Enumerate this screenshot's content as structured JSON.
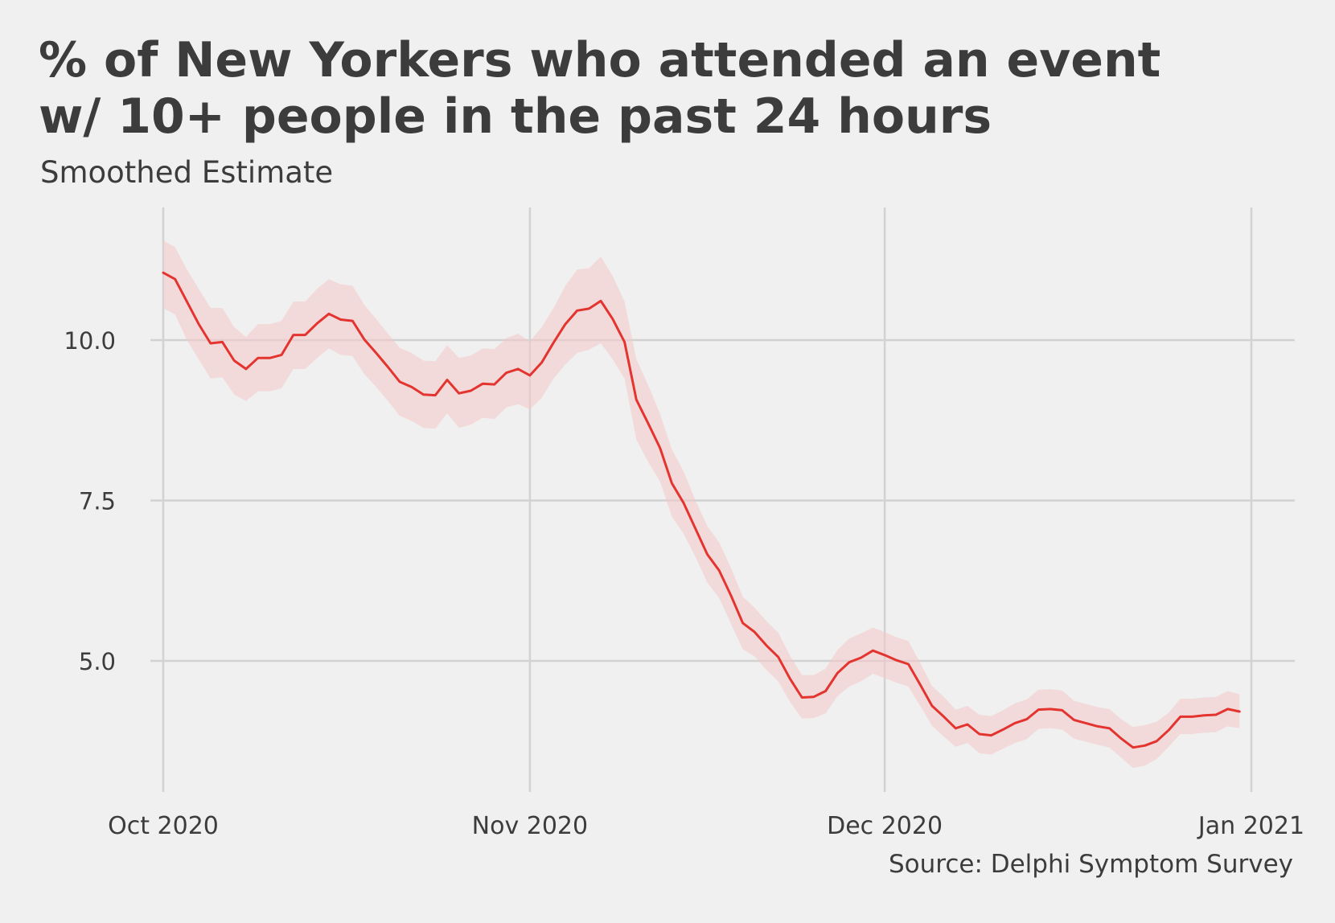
{
  "header": {
    "title_line1": "% of New Yorkers who attended an event",
    "title_line2": "w/ 10+ people in the past 24 hours",
    "subtitle": "Smoothed Estimate"
  },
  "footer": {
    "source": "Source: Delphi Symptom Survey"
  },
  "colors": {
    "line": "#e3342f",
    "ribbon": "#f5c9c9",
    "grid": "#d2d2d2",
    "background": "#f0f0f0",
    "text": "#3c3c3c"
  },
  "chart_data": {
    "type": "line",
    "title": "% of New Yorkers who attended an event w/ 10+ people in the past 24 hours",
    "subtitle": "Smoothed Estimate",
    "xlabel": "",
    "ylabel": "",
    "xlim": [
      "2020-10-01",
      "2020-12-31"
    ],
    "ylim": [
      3.2,
      11.9
    ],
    "grid": true,
    "x_ticks": [
      {
        "date": "2020-10-01",
        "label": "Oct 2020"
      },
      {
        "date": "2020-11-01",
        "label": "Nov 2020"
      },
      {
        "date": "2020-12-01",
        "label": "Dec 2020"
      },
      {
        "date": "2021-01-01",
        "label": "Jan 2021"
      }
    ],
    "y_ticks": [
      {
        "value": 5.0,
        "label": "5.0"
      },
      {
        "value": 7.5,
        "label": "7.5"
      },
      {
        "value": 10.0,
        "label": "10.0"
      }
    ],
    "series": [
      {
        "start_date": "2020-10-01",
        "values": [
          11.05,
          10.95,
          10.6,
          10.25,
          9.95,
          9.97,
          9.68,
          9.55,
          9.72,
          9.72,
          9.77,
          10.08,
          10.08,
          10.26,
          10.41,
          10.32,
          10.3,
          10.01,
          9.8,
          9.58,
          9.35,
          9.27,
          9.15,
          9.14,
          9.38,
          9.17,
          9.21,
          9.32,
          9.31,
          9.49,
          9.55,
          9.45,
          9.65,
          9.96,
          10.25,
          10.46,
          10.49,
          10.61,
          10.33,
          9.97,
          9.07,
          8.7,
          8.32,
          7.77,
          7.46,
          7.06,
          6.66,
          6.41,
          6.02,
          5.59,
          5.45,
          5.24,
          5.06,
          4.72,
          4.43,
          4.44,
          4.53,
          4.81,
          4.98,
          5.05,
          5.16,
          5.09,
          5.01,
          4.95,
          4.63,
          4.3,
          4.13,
          3.95,
          4.01,
          3.86,
          3.84,
          3.93,
          4.03,
          4.09,
          4.24,
          4.25,
          4.23,
          4.08,
          4.03,
          3.98,
          3.95,
          3.79,
          3.65,
          3.68,
          3.75,
          3.92,
          4.13,
          4.13,
          4.15,
          4.16,
          4.25,
          4.21
        ],
        "lower": [
          10.5,
          10.4,
          10.0,
          9.7,
          9.4,
          9.42,
          9.15,
          9.05,
          9.2,
          9.2,
          9.25,
          9.55,
          9.55,
          9.72,
          9.87,
          9.77,
          9.75,
          9.47,
          9.27,
          9.05,
          8.82,
          8.74,
          8.63,
          8.62,
          8.86,
          8.63,
          8.68,
          8.79,
          8.77,
          8.95,
          9.0,
          8.92,
          9.1,
          9.4,
          9.62,
          9.8,
          9.85,
          9.95,
          9.7,
          9.4,
          8.45,
          8.1,
          7.8,
          7.25,
          6.98,
          6.62,
          6.22,
          5.98,
          5.58,
          5.18,
          5.07,
          4.86,
          4.68,
          4.36,
          4.1,
          4.11,
          4.18,
          4.45,
          4.6,
          4.68,
          4.8,
          4.73,
          4.66,
          4.6,
          4.3,
          3.99,
          3.82,
          3.66,
          3.72,
          3.56,
          3.54,
          3.63,
          3.72,
          3.78,
          3.94,
          3.95,
          3.93,
          3.79,
          3.74,
          3.69,
          3.65,
          3.49,
          3.33,
          3.37,
          3.47,
          3.66,
          3.86,
          3.86,
          3.88,
          3.89,
          3.98,
          3.95
        ],
        "upper": [
          11.55,
          11.45,
          11.1,
          10.8,
          10.5,
          10.5,
          10.2,
          10.05,
          10.25,
          10.25,
          10.3,
          10.6,
          10.6,
          10.8,
          10.95,
          10.87,
          10.85,
          10.55,
          10.33,
          10.1,
          9.88,
          9.8,
          9.68,
          9.67,
          9.92,
          9.72,
          9.76,
          9.87,
          9.86,
          10.03,
          10.1,
          9.98,
          10.2,
          10.5,
          10.85,
          11.1,
          11.12,
          11.3,
          11.0,
          10.6,
          9.7,
          9.3,
          8.85,
          8.3,
          7.95,
          7.5,
          7.1,
          6.85,
          6.45,
          6.0,
          5.83,
          5.62,
          5.44,
          5.08,
          4.78,
          4.78,
          4.88,
          5.17,
          5.35,
          5.43,
          5.52,
          5.45,
          5.37,
          5.31,
          4.97,
          4.61,
          4.44,
          4.24,
          4.3,
          4.16,
          4.14,
          4.23,
          4.34,
          4.4,
          4.55,
          4.56,
          4.54,
          4.38,
          4.33,
          4.28,
          4.25,
          4.09,
          3.97,
          4.0,
          4.05,
          4.19,
          4.41,
          4.41,
          4.43,
          4.44,
          4.53,
          4.48
        ]
      }
    ]
  }
}
